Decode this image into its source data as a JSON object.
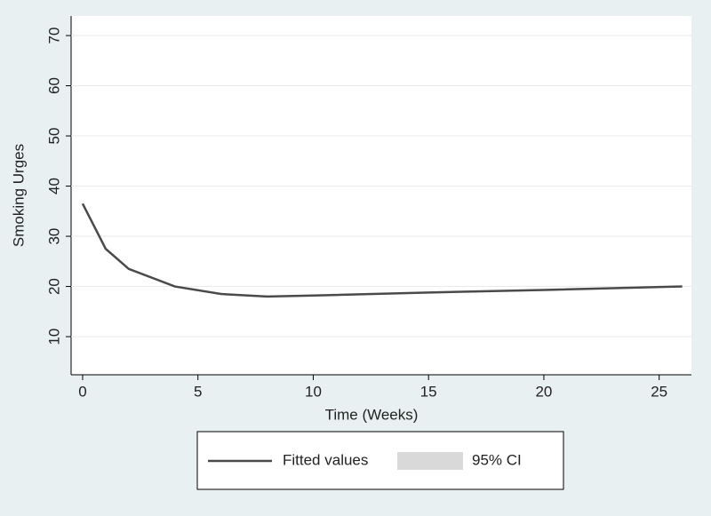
{
  "chart_data": {
    "type": "line",
    "x": [
      0,
      1,
      2,
      4,
      6,
      8,
      10,
      15,
      20,
      26
    ],
    "series": [
      {
        "name": "Fitted values",
        "color": "#4a4a4a",
        "values": [
          36.5,
          27.5,
          23.5,
          20,
          18.5,
          18,
          18.2,
          18.8,
          19.3,
          20
        ]
      },
      {
        "name": "95% CI",
        "color": "#d9d9d9"
      }
    ],
    "xlabel": "Time (Weeks)",
    "ylabel": "Smoking Urges",
    "xlim": [
      -0.5,
      26.4
    ],
    "xticks": [
      0,
      5,
      10,
      15,
      20,
      25
    ],
    "ylim": [
      2.4,
      73.9
    ],
    "yticks": [
      10,
      20,
      30,
      40,
      50,
      60,
      70
    ],
    "grid": true,
    "legend": "bottom"
  }
}
